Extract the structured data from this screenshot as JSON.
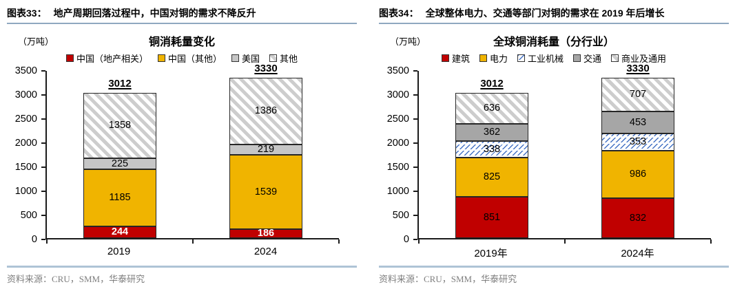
{
  "colors": {
    "red": "#C00000",
    "yellow": "#F0B400",
    "gray_light": "#C6C6C6",
    "gray_mid": "#A6A6A6",
    "hatch_gray_stripe": "#CDCDCD",
    "hatch_blue_stripe": "#4472C4",
    "bar_border": "#262626",
    "header_rule": "#8FA8C0",
    "footer_rule": "#AEC3D6",
    "source_text": "#7f7f7f"
  },
  "panels": [
    {
      "figure_label": "图表33：",
      "figure_title": "地产周期回落过程中，中国对铜的需求不降反升",
      "unit": "（万吨）",
      "chart_title": "铜消耗量变化",
      "source": "资料来源：CRU，SMM，华泰研究"
    },
    {
      "figure_label": "图表34：",
      "figure_title": "全球整体电力、交通等部门对铜的需求在 2019 年后增长",
      "unit": "（万吨）",
      "chart_title": "全球铜消耗量（分行业）",
      "source": "资料来源：CRU，SMM，华泰研究"
    }
  ],
  "chart_data": [
    {
      "type": "bar",
      "stacked": true,
      "title": "铜消耗量变化",
      "ylabel": "万吨",
      "categories": [
        "2019",
        "2024"
      ],
      "series": [
        {
          "name": "中国（地产相关）",
          "values": [
            244,
            186
          ],
          "fill": "red",
          "label_color": "#FFFFFF",
          "label_bold": true
        },
        {
          "name": "中国（其他）",
          "values": [
            1185,
            1539
          ],
          "fill": "yellow",
          "label_color": "#000000"
        },
        {
          "name": "美国",
          "values": [
            225,
            219
          ],
          "fill": "gray_light",
          "label_color": "#000000"
        },
        {
          "name": "其他",
          "values": [
            1358,
            1386
          ],
          "fill": "hatch_gray",
          "label_color": "#000000"
        }
      ],
      "totals": [
        3012,
        3330
      ],
      "ylim": [
        0,
        3500
      ],
      "ytick_step": 500,
      "grid": false,
      "legend_position": "top"
    },
    {
      "type": "bar",
      "stacked": true,
      "title": "全球铜消耗量（分行业）",
      "ylabel": "万吨",
      "categories": [
        "2019年",
        "2024年"
      ],
      "series": [
        {
          "name": "建筑",
          "values": [
            851,
            832
          ],
          "fill": "red",
          "label_color": "#000000"
        },
        {
          "name": "电力",
          "values": [
            825,
            986
          ],
          "fill": "yellow",
          "label_color": "#000000"
        },
        {
          "name": "工业机械",
          "values": [
            338,
            353
          ],
          "fill": "hatch_blue",
          "label_color": "#000000"
        },
        {
          "name": "交通",
          "values": [
            362,
            453
          ],
          "fill": "gray_mid",
          "label_color": "#000000"
        },
        {
          "name": "商业及通用",
          "values": [
            636,
            707
          ],
          "fill": "hatch_gray",
          "label_color": "#000000"
        }
      ],
      "totals": [
        3012,
        3330
      ],
      "ylim": [
        0,
        3500
      ],
      "ytick_step": 500,
      "grid": false,
      "legend_position": "top"
    }
  ]
}
